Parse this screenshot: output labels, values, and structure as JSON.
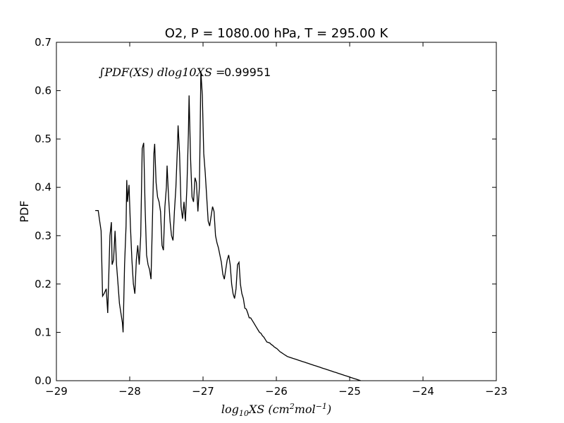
{
  "chart_data": {
    "type": "line",
    "title": "O2, P = 1080.00 hPa, T = 295.00 K",
    "xlabel": "log10XS (cm2mol-1)",
    "ylabel": "PDF",
    "xlim": [
      -29,
      -23
    ],
    "ylim": [
      0,
      0.7
    ],
    "grid": false,
    "x_ticks": [
      "−29",
      "−28",
      "−27",
      "−26",
      "−25",
      "−24",
      "−23"
    ],
    "y_ticks": [
      "0.0",
      "0.1",
      "0.2",
      "0.3",
      "0.4",
      "0.5",
      "0.6",
      "0.7"
    ],
    "annotation": {
      "label": "∫PDF(XS) dlog10XS =",
      "value": "0.99951"
    },
    "series": [
      {
        "color": "#000000",
        "points": [
          [
            -28.47,
            0.352
          ],
          [
            -28.43,
            0.352
          ],
          [
            -28.41,
            0.33
          ],
          [
            -28.39,
            0.31
          ],
          [
            -28.37,
            0.175
          ],
          [
            -28.35,
            0.18
          ],
          [
            -28.32,
            0.19
          ],
          [
            -28.3,
            0.14
          ],
          [
            -28.27,
            0.3
          ],
          [
            -28.25,
            0.328
          ],
          [
            -28.24,
            0.24
          ],
          [
            -28.22,
            0.25
          ],
          [
            -28.2,
            0.31
          ],
          [
            -28.18,
            0.24
          ],
          [
            -28.16,
            0.2
          ],
          [
            -28.14,
            0.16
          ],
          [
            -28.12,
            0.14
          ],
          [
            -28.1,
            0.12
          ],
          [
            -28.09,
            0.1
          ],
          [
            -28.07,
            0.24
          ],
          [
            -28.05,
            0.32
          ],
          [
            -28.04,
            0.415
          ],
          [
            -28.03,
            0.37
          ],
          [
            -28.01,
            0.405
          ],
          [
            -27.99,
            0.32
          ],
          [
            -27.97,
            0.25
          ],
          [
            -27.95,
            0.2
          ],
          [
            -27.93,
            0.18
          ],
          [
            -27.91,
            0.25
          ],
          [
            -27.89,
            0.28
          ],
          [
            -27.87,
            0.24
          ],
          [
            -27.85,
            0.3
          ],
          [
            -27.83,
            0.48
          ],
          [
            -27.81,
            0.492
          ],
          [
            -27.79,
            0.36
          ],
          [
            -27.77,
            0.26
          ],
          [
            -27.75,
            0.24
          ],
          [
            -27.73,
            0.23
          ],
          [
            -27.71,
            0.21
          ],
          [
            -27.69,
            0.33
          ],
          [
            -27.67,
            0.47
          ],
          [
            -27.66,
            0.49
          ],
          [
            -27.64,
            0.41
          ],
          [
            -27.62,
            0.38
          ],
          [
            -27.6,
            0.37
          ],
          [
            -27.58,
            0.35
          ],
          [
            -27.56,
            0.28
          ],
          [
            -27.54,
            0.27
          ],
          [
            -27.52,
            0.36
          ],
          [
            -27.5,
            0.4
          ],
          [
            -27.49,
            0.445
          ],
          [
            -27.47,
            0.38
          ],
          [
            -27.45,
            0.33
          ],
          [
            -27.43,
            0.3
          ],
          [
            -27.41,
            0.29
          ],
          [
            -27.39,
            0.35
          ],
          [
            -27.37,
            0.4
          ],
          [
            -27.35,
            0.48
          ],
          [
            -27.34,
            0.528
          ],
          [
            -27.32,
            0.47
          ],
          [
            -27.3,
            0.36
          ],
          [
            -27.28,
            0.335
          ],
          [
            -27.26,
            0.37
          ],
          [
            -27.24,
            0.33
          ],
          [
            -27.22,
            0.4
          ],
          [
            -27.2,
            0.51
          ],
          [
            -27.19,
            0.59
          ],
          [
            -27.17,
            0.46
          ],
          [
            -27.15,
            0.38
          ],
          [
            -27.13,
            0.37
          ],
          [
            -27.11,
            0.42
          ],
          [
            -27.09,
            0.41
          ],
          [
            -27.07,
            0.35
          ],
          [
            -27.05,
            0.4
          ],
          [
            -27.04,
            0.5
          ],
          [
            -27.03,
            0.64
          ],
          [
            -27.01,
            0.59
          ],
          [
            -26.99,
            0.47
          ],
          [
            -26.97,
            0.43
          ],
          [
            -26.95,
            0.38
          ],
          [
            -26.93,
            0.33
          ],
          [
            -26.91,
            0.32
          ],
          [
            -26.89,
            0.34
          ],
          [
            -26.87,
            0.36
          ],
          [
            -26.85,
            0.35
          ],
          [
            -26.83,
            0.3
          ],
          [
            -26.81,
            0.285
          ],
          [
            -26.79,
            0.275
          ],
          [
            -26.77,
            0.26
          ],
          [
            -26.75,
            0.245
          ],
          [
            -26.73,
            0.22
          ],
          [
            -26.71,
            0.21
          ],
          [
            -26.69,
            0.23
          ],
          [
            -26.67,
            0.25
          ],
          [
            -26.65,
            0.26
          ],
          [
            -26.63,
            0.24
          ],
          [
            -26.61,
            0.2
          ],
          [
            -26.59,
            0.18
          ],
          [
            -26.57,
            0.17
          ],
          [
            -26.55,
            0.19
          ],
          [
            -26.53,
            0.24
          ],
          [
            -26.51,
            0.245
          ],
          [
            -26.49,
            0.2
          ],
          [
            -26.47,
            0.18
          ],
          [
            -26.45,
            0.17
          ],
          [
            -26.43,
            0.15
          ],
          [
            -26.41,
            0.148
          ],
          [
            -26.39,
            0.14
          ],
          [
            -26.37,
            0.13
          ],
          [
            -26.35,
            0.13
          ],
          [
            -26.33,
            0.125
          ],
          [
            -26.31,
            0.12
          ],
          [
            -26.29,
            0.115
          ],
          [
            -26.27,
            0.11
          ],
          [
            -26.25,
            0.105
          ],
          [
            -26.23,
            0.1
          ],
          [
            -26.21,
            0.098
          ],
          [
            -26.19,
            0.093
          ],
          [
            -26.17,
            0.09
          ],
          [
            -26.15,
            0.085
          ],
          [
            -26.13,
            0.08
          ],
          [
            -26.11,
            0.079
          ],
          [
            -26.09,
            0.078
          ],
          [
            -26.07,
            0.075
          ],
          [
            -26.05,
            0.073
          ],
          [
            -26.03,
            0.07
          ],
          [
            -26.01,
            0.068
          ],
          [
            -25.99,
            0.066
          ],
          [
            -25.97,
            0.063
          ],
          [
            -25.95,
            0.06
          ],
          [
            -25.93,
            0.058
          ],
          [
            -25.91,
            0.056
          ],
          [
            -25.89,
            0.054
          ],
          [
            -25.87,
            0.052
          ],
          [
            -25.85,
            0.05
          ],
          [
            -25.83,
            0.049
          ],
          [
            -25.81,
            0.048
          ],
          [
            -25.79,
            0.047
          ],
          [
            -25.77,
            0.046
          ],
          [
            -25.75,
            0.045
          ],
          [
            -25.73,
            0.044
          ],
          [
            -25.71,
            0.043
          ],
          [
            -25.69,
            0.042
          ],
          [
            -25.67,
            0.041
          ],
          [
            -25.65,
            0.04
          ],
          [
            -25.63,
            0.039
          ],
          [
            -25.61,
            0.038
          ],
          [
            -25.59,
            0.037
          ],
          [
            -25.57,
            0.036
          ],
          [
            -25.55,
            0.035
          ],
          [
            -25.53,
            0.034
          ],
          [
            -25.51,
            0.033
          ],
          [
            -25.49,
            0.032
          ],
          [
            -25.47,
            0.031
          ],
          [
            -25.45,
            0.03
          ],
          [
            -25.43,
            0.029
          ],
          [
            -25.41,
            0.028
          ],
          [
            -25.39,
            0.027
          ],
          [
            -25.37,
            0.026
          ],
          [
            -25.35,
            0.025
          ],
          [
            -25.33,
            0.024
          ],
          [
            -25.31,
            0.023
          ],
          [
            -25.29,
            0.022
          ],
          [
            -25.27,
            0.021
          ],
          [
            -25.25,
            0.02
          ],
          [
            -25.23,
            0.019
          ],
          [
            -25.21,
            0.018
          ],
          [
            -25.19,
            0.017
          ],
          [
            -25.17,
            0.016
          ],
          [
            -25.15,
            0.015
          ],
          [
            -25.13,
            0.014
          ],
          [
            -25.11,
            0.013
          ],
          [
            -25.09,
            0.012
          ],
          [
            -25.07,
            0.011
          ],
          [
            -25.05,
            0.01
          ],
          [
            -25.03,
            0.009
          ],
          [
            -25.01,
            0.008
          ],
          [
            -24.99,
            0.007
          ],
          [
            -24.97,
            0.006
          ],
          [
            -24.95,
            0.005
          ],
          [
            -24.93,
            0.004
          ],
          [
            -24.91,
            0.003
          ],
          [
            -24.89,
            0.002
          ],
          [
            -24.87,
            0.001
          ],
          [
            -24.85,
            0.0
          ]
        ]
      }
    ]
  }
}
